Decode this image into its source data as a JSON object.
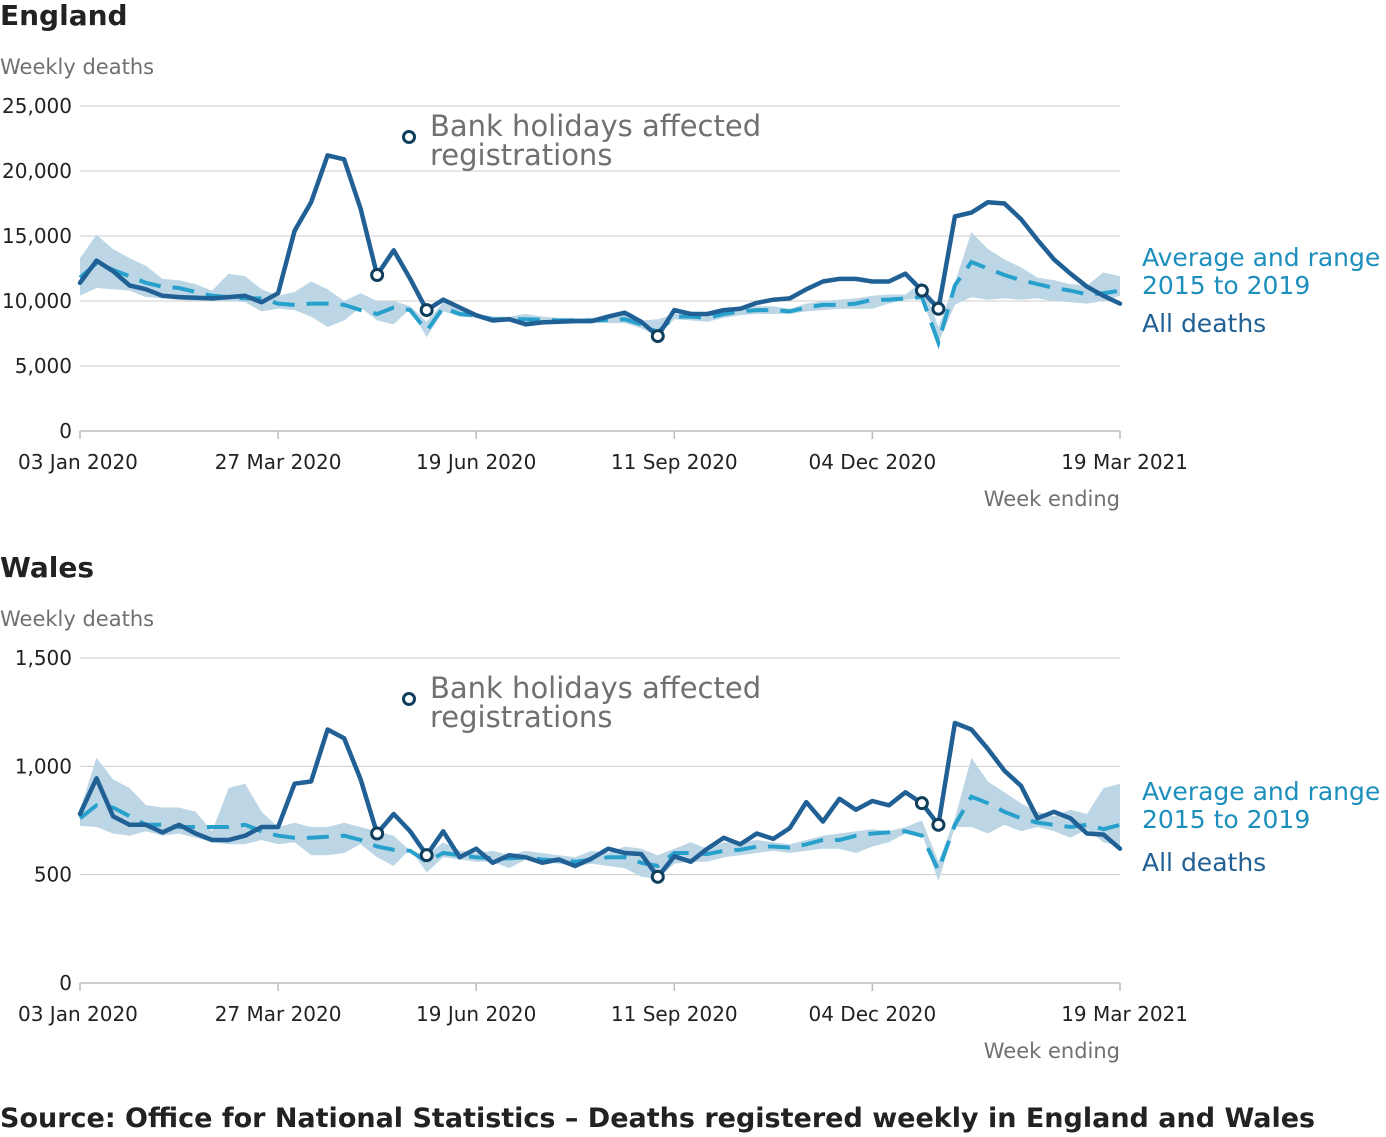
{
  "source": "Source: Office for National Statistics – Deaths registered weekly in England and Wales",
  "colors": {
    "all_deaths": "#206095",
    "average": "#27a0cc",
    "range": "#bcd6e6",
    "grid": "#cccccc",
    "text_muted": "#707070"
  },
  "chart_data": [
    {
      "type": "line",
      "title": "England",
      "ylabel": "Weekly deaths",
      "xlabel": "Week ending",
      "ylim": [
        0,
        25000
      ],
      "yticks": [
        0,
        5000,
        10000,
        15000,
        20000,
        25000
      ],
      "ytick_labels": [
        "0",
        "5,000",
        "10,000",
        "15,000",
        "20,000",
        "25,000"
      ],
      "xticks": [
        {
          "week": 1,
          "label": "03 Jan 2020"
        },
        {
          "week": 13,
          "label": "27 Mar 2020"
        },
        {
          "week": 25,
          "label": "19 Jun 2020"
        },
        {
          "week": 37,
          "label": "11 Sep 2020"
        },
        {
          "week": 49,
          "label": "04 Dec 2020"
        },
        {
          "week": 64,
          "label": "19 Mar 2021"
        }
      ],
      "x_week_start": "03 Jan 2020",
      "x_week_end": "19 Mar 2021",
      "annotation": {
        "line1": "Bank holidays affected",
        "line2": "registrations"
      },
      "series": [
        {
          "name": "All deaths",
          "values": [
            11400,
            13100,
            12300,
            11200,
            10900,
            10400,
            10300,
            10250,
            10200,
            10300,
            10400,
            9900,
            10600,
            15400,
            17600,
            21200,
            20900,
            17100,
            12000,
            13900,
            11700,
            9300,
            10100,
            9500,
            8900,
            8500,
            8600,
            8200,
            8350,
            8400,
            8450,
            8450,
            8800,
            9100,
            8400,
            7300,
            9300,
            9000,
            9000,
            9300,
            9400,
            9850,
            10100,
            10200,
            10900,
            11500,
            11700,
            11700,
            11500,
            11500,
            12100,
            10800,
            9400,
            16500,
            16800,
            17600,
            17500,
            16300,
            14700,
            13200,
            12100,
            11100,
            10400,
            9800
          ],
          "bank_holiday_weeks": [
            19,
            22,
            36,
            52,
            53
          ]
        },
        {
          "name": "Average and range 2015 to 2019",
          "average": [
            11800,
            12900,
            12400,
            11900,
            11400,
            11100,
            11000,
            10700,
            10400,
            10300,
            10200,
            10200,
            9800,
            9700,
            9800,
            9800,
            9700,
            9300,
            9000,
            9500,
            9300,
            7700,
            9500,
            9000,
            8900,
            8600,
            8600,
            8600,
            8550,
            8500,
            8500,
            8500,
            8550,
            8600,
            8200,
            7600,
            8800,
            8800,
            8700,
            9000,
            9200,
            9300,
            9300,
            9200,
            9500,
            9700,
            9700,
            9800,
            10100,
            10100,
            10200,
            10300,
            6800,
            11200,
            13000,
            12500,
            12000,
            11600,
            11300,
            11000,
            10800,
            10500,
            10600,
            10800
          ],
          "range_low": [
            10400,
            11000,
            10900,
            10800,
            10300,
            10200,
            10100,
            10000,
            10000,
            10000,
            9900,
            9200,
            9400,
            9300,
            8800,
            8000,
            8500,
            9500,
            8500,
            8200,
            9400,
            7200,
            9200,
            8800,
            8700,
            8500,
            8400,
            8300,
            8300,
            8300,
            8300,
            8300,
            8300,
            8300,
            7900,
            7300,
            8600,
            8500,
            8400,
            8700,
            8900,
            9000,
            9000,
            9000,
            9200,
            9300,
            9400,
            9400,
            9400,
            9800,
            10100,
            10200,
            6800,
            9700,
            10300,
            10100,
            10200,
            10100,
            10200,
            10000,
            9900,
            9800,
            10000,
            10400
          ],
          "range_high": [
            13300,
            15100,
            14000,
            13300,
            12700,
            11700,
            11600,
            11300,
            10800,
            12100,
            11900,
            10900,
            10400,
            10700,
            11500,
            10900,
            10000,
            10600,
            10000,
            10000,
            9600,
            8400,
            9900,
            9300,
            9000,
            8800,
            8800,
            9000,
            8800,
            8700,
            8700,
            8700,
            8800,
            9000,
            8500,
            8600,
            9000,
            9200,
            9000,
            9200,
            9500,
            9600,
            9600,
            9400,
            9800,
            10000,
            10100,
            10200,
            10400,
            10500,
            10500,
            11500,
            8000,
            11400,
            15300,
            14000,
            13200,
            12600,
            11800,
            11600,
            11300,
            11200,
            12200,
            11900
          ]
        }
      ],
      "legend": {
        "average": {
          "line1": "Average and range",
          "line2": "2015 to 2019"
        },
        "all": "All deaths"
      }
    },
    {
      "type": "line",
      "title": "Wales",
      "ylabel": "Weekly deaths",
      "xlabel": "Week ending",
      "ylim": [
        0,
        1500
      ],
      "yticks": [
        0,
        500,
        1000,
        1500
      ],
      "ytick_labels": [
        "0",
        "500",
        "1,000",
        "1,500"
      ],
      "xticks": [
        {
          "week": 1,
          "label": "03 Jan 2020"
        },
        {
          "week": 13,
          "label": "27 Mar 2020"
        },
        {
          "week": 25,
          "label": "19 Jun 2020"
        },
        {
          "week": 37,
          "label": "11 Sep 2020"
        },
        {
          "week": 49,
          "label": "04 Dec 2020"
        },
        {
          "week": 64,
          "label": "19 Mar 2021"
        }
      ],
      "x_week_start": "03 Jan 2020",
      "x_week_end": "19 Mar 2021",
      "annotation": {
        "line1": "Bank holidays affected",
        "line2": "registrations"
      },
      "series": [
        {
          "name": "All deaths",
          "values": [
            780,
            945,
            770,
            730,
            730,
            695,
            730,
            690,
            660,
            660,
            680,
            720,
            720,
            920,
            930,
            1170,
            1130,
            940,
            690,
            780,
            700,
            590,
            700,
            580,
            620,
            555,
            590,
            580,
            555,
            570,
            540,
            575,
            620,
            600,
            595,
            490,
            585,
            560,
            620,
            670,
            640,
            690,
            665,
            715,
            835,
            745,
            850,
            800,
            840,
            820,
            880,
            830,
            730,
            1200,
            1170,
            1080,
            980,
            910,
            760,
            790,
            760,
            690,
            685,
            620
          ],
          "bank_holiday_weeks": [
            19,
            22,
            36,
            52,
            53
          ]
        },
        {
          "name": "Average and range 2015 to 2019",
          "average": [
            760,
            820,
            810,
            770,
            730,
            730,
            720,
            720,
            720,
            720,
            730,
            700,
            680,
            670,
            670,
            675,
            680,
            660,
            630,
            615,
            610,
            560,
            600,
            590,
            580,
            575,
            575,
            580,
            570,
            565,
            560,
            570,
            580,
            580,
            555,
            540,
            600,
            600,
            595,
            610,
            615,
            630,
            630,
            625,
            640,
            660,
            660,
            680,
            690,
            695,
            700,
            680,
            520,
            730,
            860,
            830,
            790,
            760,
            740,
            730,
            720,
            730,
            710,
            730
          ],
          "range_low": [
            725,
            720,
            690,
            680,
            700,
            680,
            690,
            670,
            650,
            640,
            640,
            660,
            640,
            650,
            590,
            590,
            600,
            640,
            580,
            540,
            620,
            510,
            580,
            570,
            560,
            560,
            530,
            570,
            560,
            550,
            540,
            550,
            540,
            530,
            490,
            480,
            550,
            560,
            560,
            580,
            590,
            600,
            610,
            600,
            610,
            620,
            620,
            600,
            630,
            650,
            690,
            690,
            470,
            720,
            720,
            690,
            730,
            700,
            720,
            700,
            670,
            710,
            650,
            630
          ],
          "range_high": [
            800,
            1040,
            940,
            900,
            820,
            810,
            810,
            790,
            700,
            900,
            920,
            790,
            720,
            740,
            720,
            720,
            740,
            720,
            700,
            680,
            610,
            590,
            650,
            610,
            600,
            610,
            590,
            610,
            600,
            590,
            580,
            610,
            600,
            630,
            620,
            590,
            620,
            650,
            620,
            650,
            650,
            660,
            650,
            640,
            660,
            680,
            690,
            700,
            710,
            700,
            720,
            750,
            560,
            760,
            1040,
            930,
            880,
            830,
            790,
            770,
            800,
            780,
            900,
            920
          ]
        }
      ],
      "legend": {
        "average": {
          "line1": "Average and range",
          "line2": "2015 to 2019"
        },
        "all": "All deaths"
      }
    }
  ]
}
